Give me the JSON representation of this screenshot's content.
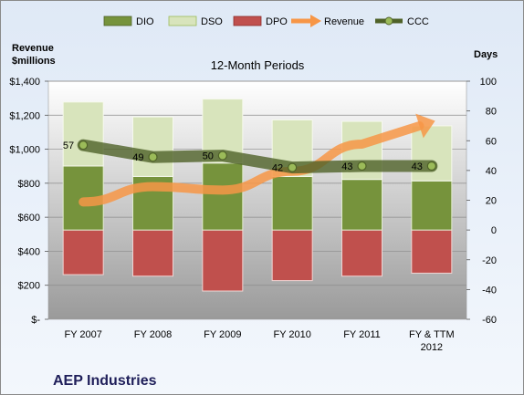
{
  "chart_data": {
    "type": "bar",
    "title": "12-Month Periods",
    "company": "AEP Industries",
    "left_axis_label": [
      "Revenue",
      "$millions"
    ],
    "right_axis_label": "Days",
    "categories": [
      [
        "FY 2007"
      ],
      [
        "FY 2008"
      ],
      [
        "FY 2009"
      ],
      [
        "FY 2010"
      ],
      [
        "FY 2011"
      ],
      [
        "FY & TTM",
        "2012"
      ]
    ],
    "left_axis": {
      "min": 0,
      "max": 1400,
      "step": 200,
      "tick_labels": [
        "$-",
        "$200",
        "$400",
        "$600",
        "$800",
        "$1,000",
        "$1,200",
        "$1,400"
      ]
    },
    "right_axis": {
      "min": -60,
      "max": 100,
      "step": 20,
      "tick_labels": [
        "-60",
        "-40",
        "-20",
        "0",
        "20",
        "40",
        "60",
        "80",
        "100"
      ]
    },
    "grid": true,
    "legend_position": "top",
    "series": [
      {
        "name": "DIO",
        "axis": "right",
        "kind": "stacked-bar",
        "color": "#76933c",
        "values": [
          43,
          36,
          45,
          36,
          34,
          33
        ]
      },
      {
        "name": "DSO",
        "axis": "right",
        "kind": "stacked-bar",
        "color": "#d8e4bc",
        "values": [
          43,
          40,
          43,
          38,
          39,
          37
        ]
      },
      {
        "name": "DPO",
        "axis": "right",
        "kind": "negative-bar",
        "color": "#c0504d",
        "values": [
          -30,
          -31,
          -41,
          -34,
          -31,
          -29
        ]
      },
      {
        "name": "Revenue",
        "axis": "left",
        "kind": "arrow-line",
        "color": "#f79646",
        "values": [
          690,
          780,
          760,
          870,
          1030,
          1160
        ]
      },
      {
        "name": "CCC",
        "axis": "right",
        "kind": "line",
        "color": "#4f6228",
        "values": [
          57,
          49,
          50,
          42,
          43,
          43
        ]
      }
    ],
    "data_labels": [
      "57",
      "49",
      "50",
      "42",
      "43",
      "43"
    ]
  }
}
